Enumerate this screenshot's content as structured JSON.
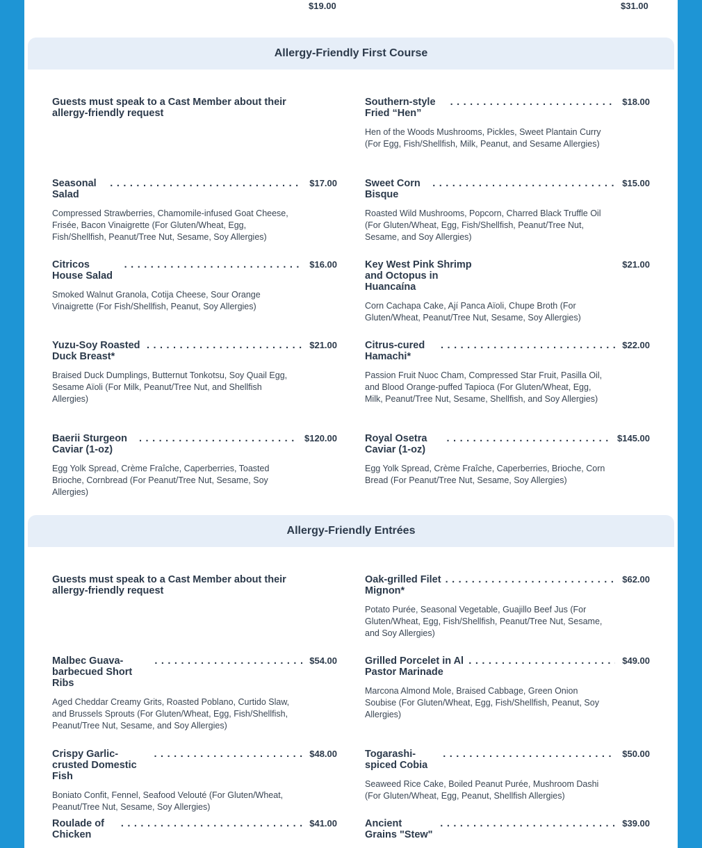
{
  "colors": {
    "background": "#1e95d5",
    "band": "#e6eef8",
    "text": "#2c3a4b"
  },
  "previous_prices": {
    "left": "$19.00",
    "right": "$31.00"
  },
  "sections": [
    {
      "title": "Allergy-Friendly First Course",
      "notice": "Guests must speak to a Cast Member about their allergy-friendly request",
      "items": [
        {
          "name": "Southern-style Fried “Hen”",
          "price": "$18.00",
          "desc": "Hen of the Woods Mushrooms, Pickles, Sweet Plantain Curry (For Egg, Fish/Shellfish, Milk, Peanut, and Sesame Allergies)"
        },
        {
          "name": "Seasonal Salad",
          "price": "$17.00",
          "desc": "Compressed Strawberries, Chamomile-infused Goat Cheese, Frisée, Bacon Vinaigrette (For Gluten/Wheat, Egg, Fish/Shellfish, Peanut/Tree Nut, Sesame, Soy Allergies)"
        },
        {
          "name": "Sweet Corn Bisque",
          "price": "$15.00",
          "desc": "Roasted Wild Mushrooms, Popcorn, Charred Black Truffle Oil (For Gluten/Wheat, Egg, Fish/Shellfish, Peanut/Tree Nut, Sesame, and Soy Allergies)"
        },
        {
          "name": "Citricos House Salad",
          "price": "$16.00",
          "desc": "Smoked Walnut Granola, Cotija Cheese, Sour Orange Vinaigrette (For Fish/Shellfish, Peanut, Soy Allergies)"
        },
        {
          "name": "Key West Pink Shrimp and Octopus in Huancaína",
          "price": "$21.00",
          "desc": "Corn Cachapa Cake, Ají Panca Aïoli, Chupe Broth (For Gluten/Wheat, Peanut/Tree Nut, Sesame, Soy Allergies)"
        },
        {
          "name": "Yuzu-Soy Roasted Duck Breast*",
          "price": "$21.00",
          "desc": "Braised Duck Dumplings, Butternut Tonkotsu, Soy Quail Egg, Sesame Aïoli (For Milk, Peanut/Tree Nut, and Shellfish Allergies)"
        },
        {
          "name": "Citrus-cured Hamachi*",
          "price": "$22.00",
          "desc": "Passion Fruit Nuoc Cham, Compressed Star Fruit, Pasilla Oil, and Blood Orange-puffed Tapioca (For Gluten/Wheat, Egg, Milk, Peanut/Tree Nut, Sesame, Shellfish, and Soy Allergies)"
        },
        {
          "name": "Baerii Sturgeon Caviar (1-oz)",
          "price": "$120.00",
          "desc": "Egg Yolk Spread, Crème Fraîche, Caperberries, Toasted Brioche, Cornbread (For Peanut/Tree Nut, Sesame, Soy Allergies)"
        },
        {
          "name": "Royal Osetra Caviar (1-oz)",
          "price": "$145.00",
          "desc": "Egg Yolk Spread, Crème Fraîche, Caperberries, Brioche, Corn Bread (For Peanut/Tree Nut, Sesame, Soy Allergies)"
        }
      ]
    },
    {
      "title": "Allergy-Friendly Entrées",
      "notice": "Guests must speak to a Cast Member about their allergy-friendly request",
      "items": [
        {
          "name": "Oak-grilled Filet Mignon*",
          "price": "$62.00",
          "desc": "Potato Purée, Seasonal Vegetable, Guajillo Beef Jus (For Gluten/Wheat, Egg, Fish/Shellfish, Peanut/Tree Nut, Sesame, and Soy Allergies)"
        },
        {
          "name": "Malbec Guava-barbecued Short Ribs",
          "price": "$54.00",
          "desc": "Aged Cheddar Creamy Grits, Roasted Poblano, Curtido Slaw, and Brussels Sprouts (For Gluten/Wheat, Egg, Fish/Shellfish, Peanut/Tree Nut, Sesame, and Soy Allergies)"
        },
        {
          "name": "Grilled Porcelet in Al Pastor Marinade",
          "price": "$49.00",
          "desc": "Marcona Almond Mole, Braised Cabbage, Green Onion Soubise (For Gluten/Wheat, Egg, Fish/Shellfish, Peanut, Soy Allergies)"
        },
        {
          "name": "Crispy Garlic-crusted Domestic Fish",
          "price": "$48.00",
          "desc": "Boniato Confit, Fennel, Seafood Velouté (For Gluten/Wheat, Peanut/Tree Nut, Sesame, Soy Allergies)"
        },
        {
          "name": "Togarashi-spiced Cobia",
          "price": "$50.00",
          "desc": "Seaweed Rice Cake, Boiled Peanut Purée, Mushroom Dashi (For Gluten/Wheat, Egg, Peanut, Shellfish Allergies)"
        },
        {
          "name": "Roulade of Chicken",
          "price": "$41.00",
          "desc": ""
        },
        {
          "name": "Ancient Grains \"Stew\"",
          "price": "$39.00",
          "desc": ""
        }
      ]
    }
  ]
}
